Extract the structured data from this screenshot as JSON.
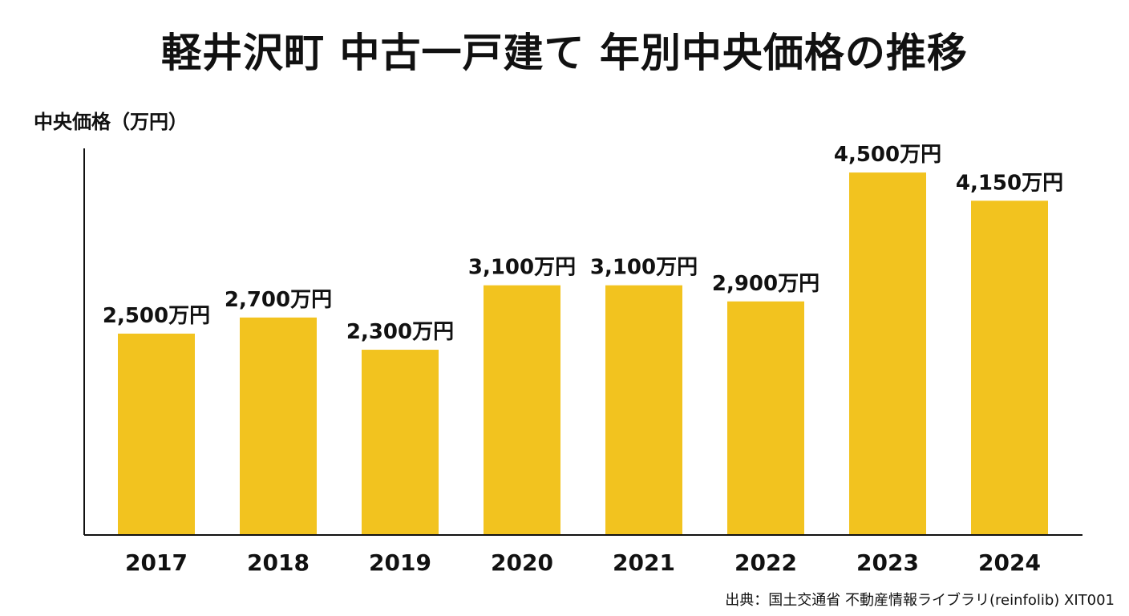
{
  "title": "軽井沢町 中古一戸建て 年別中央価格の推移",
  "source": "出典：国土交通省 不動産情報ライブラリ(reinfolib) XIT001",
  "colors": {
    "bar": "#F2C31F",
    "axis": "#111111",
    "text": "#111111"
  },
  "chart_data": {
    "type": "bar",
    "title": "軽井沢町 中古一戸建て 年別中央価格の推移",
    "ylabel": "中央価格（万円）",
    "xlabel": "",
    "categories": [
      "2017",
      "2018",
      "2019",
      "2020",
      "2021",
      "2022",
      "2023",
      "2024"
    ],
    "values": [
      2500,
      2700,
      2300,
      3100,
      3100,
      2900,
      4500,
      4150
    ],
    "data_labels": [
      "2,500万円",
      "2,700万円",
      "2,300万円",
      "3,100万円",
      "3,100万円",
      "2,900万円",
      "4,500万円",
      "4,150万円"
    ],
    "ylim": [
      0,
      5000
    ],
    "grid": false,
    "legend": "none"
  }
}
